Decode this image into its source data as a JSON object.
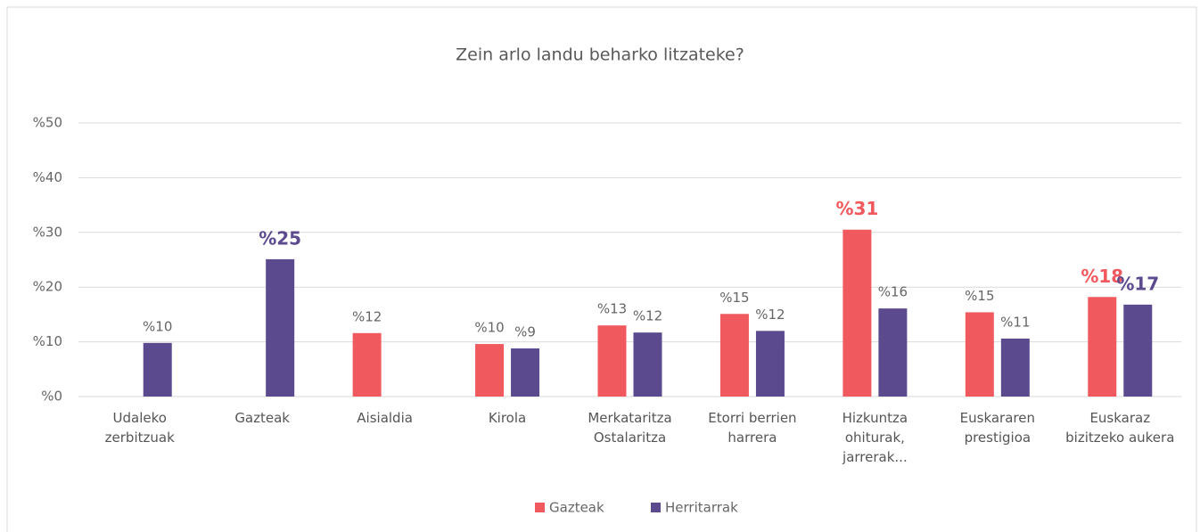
{
  "chart_data": {
    "type": "bar",
    "title": "Zein arlo landu beharko litzateke?",
    "categories": [
      "Udaleko zerbitzuak",
      "Gazteak",
      "Aisialdia",
      "Kirola",
      "Merkataritza Ostalaritza",
      "Etorri berrien harrera",
      "Hizkuntza ohiturak, jarrerak...",
      "Euskararen prestigioa",
      "Euskaraz bizitzeko aukera"
    ],
    "series": [
      {
        "name": "Gazteak",
        "color": "#f05a5e",
        "values": [
          null,
          null,
          11.6,
          9.6,
          13.0,
          15.1,
          30.5,
          15.4,
          18.2
        ],
        "value_labels": [
          null,
          null,
          "%12",
          "%10",
          "%13",
          "%15",
          "%31",
          "%15",
          "%18"
        ],
        "highlight": [
          6,
          8
        ]
      },
      {
        "name": "Herritarrak",
        "color": "#5c4a8f",
        "values": [
          9.8,
          25.1,
          null,
          8.8,
          11.7,
          12.0,
          16.1,
          10.6,
          16.8
        ],
        "value_labels": [
          "%10",
          "%25",
          null,
          "%9",
          "%12",
          "%12",
          "%16",
          "%11",
          "%17"
        ],
        "highlight": [
          1,
          8
        ]
      }
    ],
    "ylim": [
      0,
      50
    ],
    "yticks": [
      {
        "value": 0,
        "label": "%0"
      },
      {
        "value": 10,
        "label": "%10"
      },
      {
        "value": 20,
        "label": "%20"
      },
      {
        "value": 30,
        "label": "%30"
      },
      {
        "value": 40,
        "label": "%40"
      },
      {
        "value": 50,
        "label": "%50"
      }
    ],
    "grid": true,
    "legend": "bottom"
  }
}
